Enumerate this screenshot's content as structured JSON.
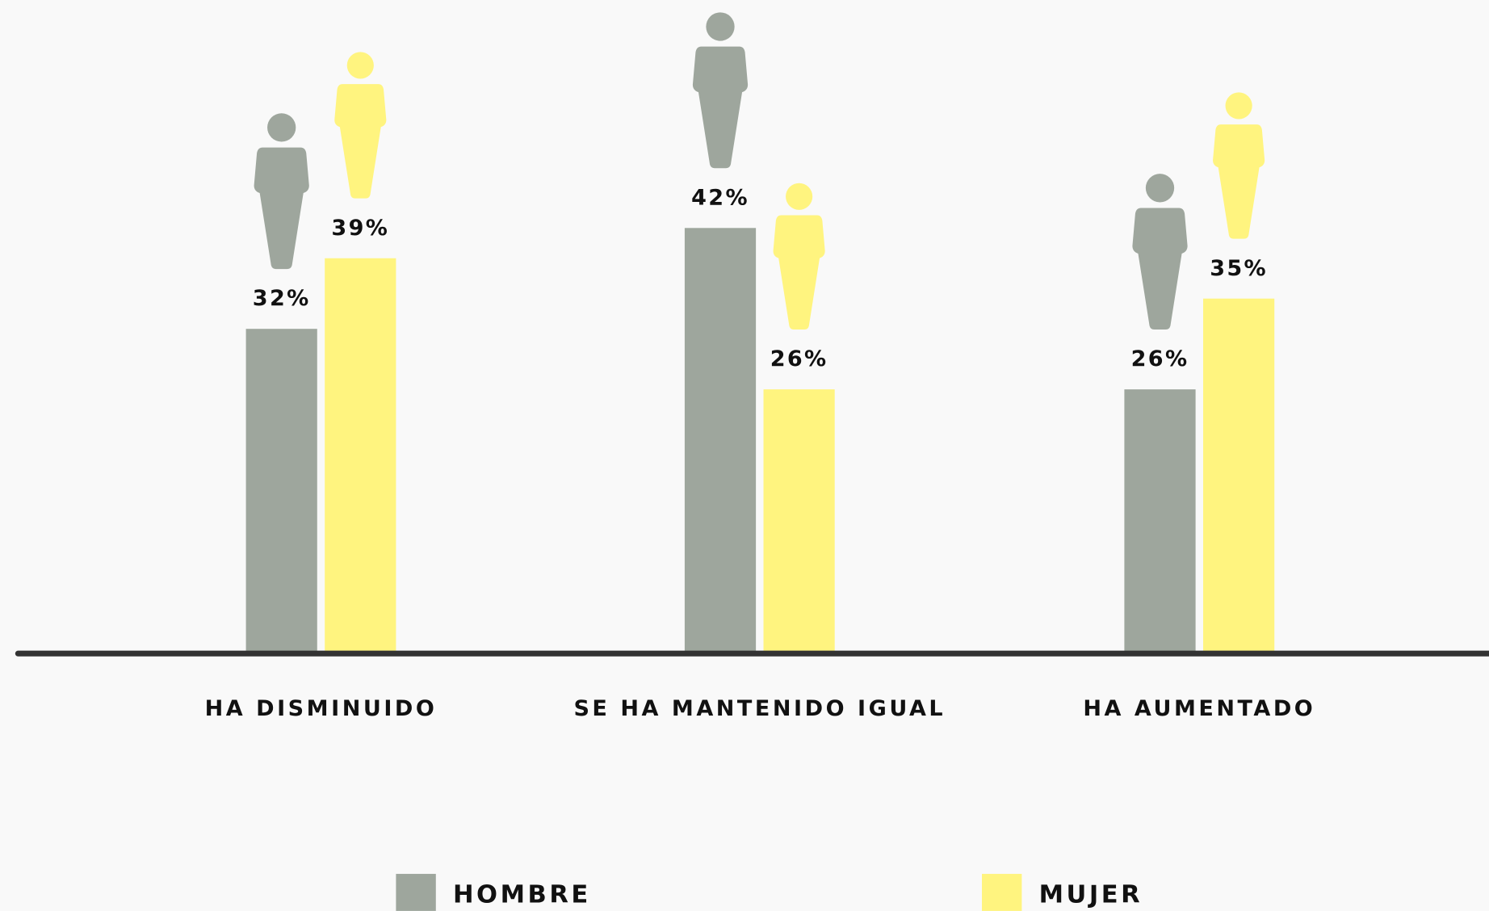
{
  "chart_data": {
    "type": "bar",
    "categories": [
      "HA DISMINUIDO",
      "SE HA MANTENIDO IGUAL",
      "HA AUMENTADO"
    ],
    "series": [
      {
        "name": "HOMBRE",
        "color": "#9ea69d",
        "values": [
          32,
          42,
          26
        ],
        "value_labels": [
          "32%",
          "42%",
          "26%"
        ]
      },
      {
        "name": "MUJER",
        "color": "#fff47f",
        "values": [
          39,
          26,
          35
        ],
        "value_labels": [
          "39%",
          "26%",
          "35%"
        ]
      }
    ]
  }
}
